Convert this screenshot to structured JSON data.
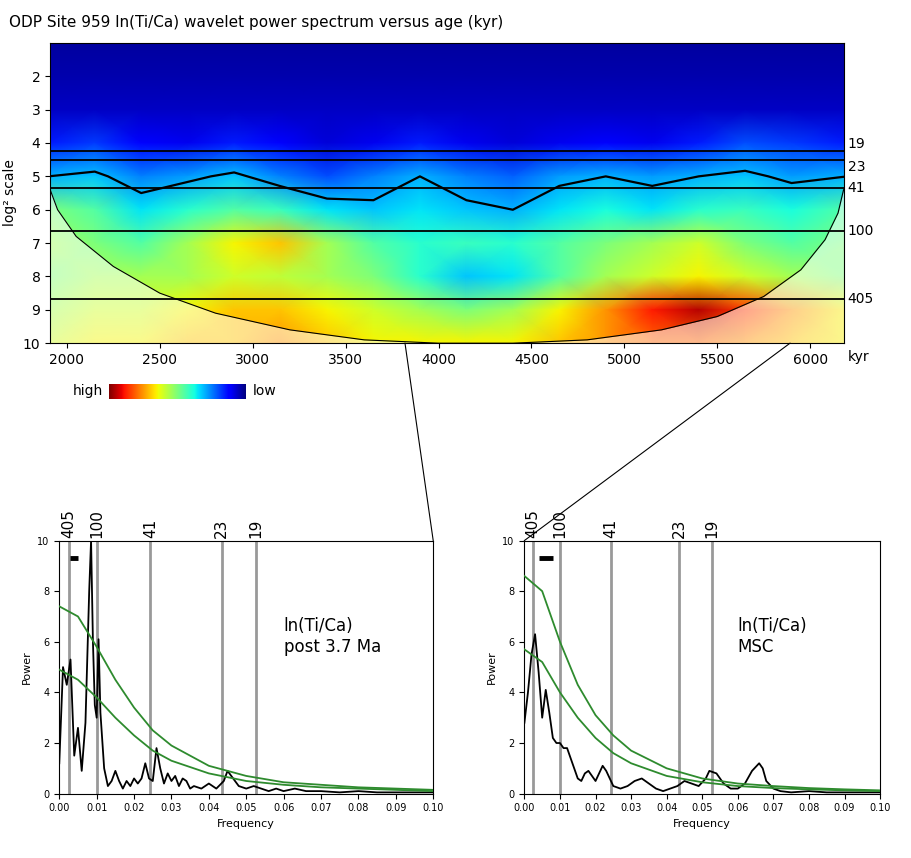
{
  "chart_data": [
    {
      "type": "heatmap",
      "title": "ODP Site 959 ln(Ti/Ca) wavelet power spectrum versus age (kyr)",
      "xlabel": "kyr",
      "ylabel": "log² scale",
      "x": [
        1900,
        2150,
        2400,
        2650,
        2900,
        3150,
        3400,
        3650,
        3900,
        4150,
        4400,
        4650,
        4900,
        5150,
        5400,
        5650,
        5900,
        6200
      ],
      "y": [
        1,
        2,
        3,
        4,
        5,
        6,
        7,
        8,
        9,
        10
      ],
      "cells": [
        [
          0.3,
          0.3,
          0.3,
          0.3,
          0.3,
          0.3,
          0.3,
          0.3,
          0.3,
          0.3,
          0.3,
          0.3,
          0.3,
          0.3,
          0.3,
          0.3,
          0.3,
          0.3
        ],
        [
          0.4,
          0.4,
          0.4,
          0.4,
          0.4,
          0.4,
          0.4,
          0.4,
          0.4,
          0.4,
          0.4,
          0.4,
          0.4,
          0.4,
          0.4,
          0.4,
          0.4,
          0.4
        ],
        [
          0.6,
          0.6,
          0.6,
          0.6,
          0.6,
          0.6,
          0.6,
          0.6,
          0.6,
          0.6,
          0.6,
          0.6,
          0.6,
          0.6,
          0.6,
          0.6,
          0.6,
          0.6
        ],
        [
          1.5,
          1.8,
          1.2,
          1.0,
          1.5,
          1.2,
          0.8,
          1.0,
          1.5,
          1.0,
          0.8,
          1.0,
          1.2,
          1.0,
          1.5,
          2.0,
          1.8,
          1.5
        ],
        [
          3.0,
          3.2,
          2.5,
          2.8,
          3.2,
          2.5,
          2.0,
          2.5,
          3.0,
          2.5,
          2.2,
          2.8,
          3.0,
          2.8,
          3.0,
          3.2,
          2.8,
          3.0
        ],
        [
          5.0,
          4.5,
          3.5,
          4.0,
          4.5,
          4.2,
          3.5,
          3.2,
          3.5,
          3.2,
          3.0,
          3.5,
          3.8,
          3.5,
          4.0,
          4.2,
          3.8,
          4.5
        ],
        [
          5.5,
          5.0,
          4.5,
          5.5,
          6.5,
          7.0,
          5.5,
          4.5,
          4.0,
          4.2,
          4.0,
          4.5,
          5.0,
          5.5,
          6.0,
          5.0,
          4.5,
          5.0
        ],
        [
          5.0,
          5.5,
          5.5,
          5.5,
          6.0,
          5.8,
          5.5,
          5.0,
          4.0,
          3.2,
          3.5,
          4.5,
          5.5,
          6.0,
          6.5,
          6.0,
          5.5,
          5.0
        ],
        [
          5.5,
          6.0,
          6.0,
          6.5,
          7.0,
          7.0,
          6.5,
          6.0,
          5.5,
          5.0,
          5.5,
          6.5,
          7.5,
          8.8,
          9.5,
          8.5,
          7.5,
          6.5
        ],
        [
          6.0,
          6.5,
          6.5,
          7.0,
          7.0,
          7.5,
          7.0,
          6.5,
          6.5,
          6.5,
          6.5,
          7.0,
          7.5,
          8.0,
          8.0,
          7.5,
          7.0,
          6.5
        ]
      ],
      "color_range": [
        0,
        10
      ],
      "colorbar_labels": [
        "high",
        "low"
      ],
      "contour_level": 3.0,
      "coi": {
        "x": [
          1910,
          1950,
          2050,
          2250,
          2500,
          2800,
          3200,
          3600,
          4000,
          4400,
          4800,
          5200,
          5500,
          5750,
          5950,
          6080,
          6150,
          6180
        ],
        "y": [
          5.4,
          6.0,
          6.8,
          7.7,
          8.5,
          9.1,
          9.6,
          9.9,
          10.0,
          10.0,
          9.9,
          9.6,
          9.2,
          8.6,
          7.8,
          6.9,
          6.1,
          5.4
        ]
      },
      "periods": [
        19,
        23,
        41,
        100,
        405
      ],
      "xlim": [
        1910,
        6180
      ],
      "ylim": [
        10,
        1
      ],
      "xticks": [
        2000,
        2500,
        3000,
        3500,
        4000,
        4500,
        5000,
        5500,
        6000
      ],
      "yticks": [
        2,
        3,
        4,
        5,
        6,
        7,
        8,
        9,
        10
      ]
    },
    {
      "type": "line",
      "annotation": "ln(Ti/Ca)\npost 3.7 Ma",
      "xlabel": "Frequency",
      "ylabel": "Power",
      "periods": [
        405,
        100,
        41,
        23,
        19
      ],
      "bandwidth": {
        "x": [
          0.003,
          0.005
        ],
        "y": 9.3
      },
      "series": [
        {
          "color": "#000000",
          "x": [
            0.0,
            0.001,
            0.002,
            0.003,
            0.004,
            0.005,
            0.006,
            0.007,
            0.008,
            0.0085,
            0.009,
            0.0095,
            0.01,
            0.0105,
            0.011,
            0.012,
            0.013,
            0.014,
            0.015,
            0.016,
            0.017,
            0.018,
            0.019,
            0.02,
            0.021,
            0.022,
            0.023,
            0.024,
            0.025,
            0.026,
            0.027,
            0.028,
            0.029,
            0.03,
            0.031,
            0.032,
            0.033,
            0.034,
            0.035,
            0.036,
            0.038,
            0.04,
            0.042,
            0.044,
            0.045,
            0.046,
            0.047,
            0.048,
            0.05,
            0.052,
            0.054,
            0.056,
            0.058,
            0.06,
            0.063,
            0.066,
            0.07,
            0.075,
            0.08,
            0.085,
            0.09,
            0.095,
            0.1
          ],
          "values": [
            1.2,
            5.0,
            4.3,
            5.3,
            1.5,
            2.6,
            0.9,
            2.8,
            8.0,
            10.0,
            6.0,
            3.5,
            3.0,
            6.1,
            3.2,
            1.0,
            0.3,
            0.5,
            0.9,
            0.5,
            0.2,
            0.5,
            0.3,
            0.6,
            0.4,
            0.6,
            1.2,
            0.6,
            0.5,
            1.8,
            1.0,
            0.4,
            0.8,
            0.5,
            0.7,
            0.3,
            0.6,
            0.5,
            0.2,
            0.3,
            0.2,
            0.4,
            0.2,
            0.5,
            0.9,
            0.7,
            0.5,
            0.3,
            0.2,
            0.3,
            0.2,
            0.1,
            0.2,
            0.1,
            0.2,
            0.1,
            0.1,
            0.05,
            0.1,
            0.05,
            0.05,
            0.05,
            0.05
          ]
        },
        {
          "color": "#2e8b2e",
          "x": [
            0.0,
            0.005,
            0.01,
            0.015,
            0.02,
            0.025,
            0.03,
            0.04,
            0.05,
            0.06,
            0.07,
            0.08,
            0.09,
            0.1
          ],
          "values": [
            7.4,
            7.0,
            5.8,
            4.5,
            3.4,
            2.5,
            1.9,
            1.1,
            0.7,
            0.45,
            0.35,
            0.25,
            0.2,
            0.15
          ]
        },
        {
          "color": "#2e8b2e",
          "x": [
            0.0,
            0.005,
            0.01,
            0.015,
            0.02,
            0.025,
            0.03,
            0.04,
            0.05,
            0.06,
            0.07,
            0.08,
            0.09,
            0.1
          ],
          "values": [
            4.9,
            4.5,
            3.8,
            3.0,
            2.3,
            1.7,
            1.3,
            0.8,
            0.5,
            0.35,
            0.25,
            0.2,
            0.15,
            0.1
          ]
        }
      ],
      "xlim": [
        0.0,
        0.1
      ],
      "ylim": [
        0,
        10
      ],
      "xticks": [
        {
          "value": 0.0,
          "label": "0.00"
        },
        {
          "value": 0.01,
          "label": "0.01"
        },
        {
          "value": 0.02,
          "label": "0.02"
        },
        {
          "value": 0.03,
          "label": "0.03"
        },
        {
          "value": 0.04,
          "label": "0.04"
        },
        {
          "value": 0.05,
          "label": "0.05"
        },
        {
          "value": 0.06,
          "label": "0.06"
        },
        {
          "value": 0.07,
          "label": "0.07"
        },
        {
          "value": 0.08,
          "label": "0.08"
        },
        {
          "value": 0.09,
          "label": "0.09"
        },
        {
          "value": 0.1,
          "label": "0.10"
        }
      ],
      "yticks": [
        0,
        2,
        4,
        6,
        8,
        10
      ]
    },
    {
      "type": "line",
      "annotation": "ln(Ti/Ca)\nMSC",
      "xlabel": "Frequency",
      "ylabel": "Power",
      "periods": [
        405,
        100,
        41,
        23,
        19
      ],
      "bandwidth": {
        "x": [
          0.004,
          0.008
        ],
        "y": 9.3
      },
      "series": [
        {
          "color": "#000000",
          "x": [
            0.0,
            0.001,
            0.002,
            0.003,
            0.004,
            0.005,
            0.006,
            0.007,
            0.008,
            0.009,
            0.01,
            0.011,
            0.012,
            0.013,
            0.014,
            0.015,
            0.016,
            0.017,
            0.018,
            0.019,
            0.02,
            0.021,
            0.022,
            0.023,
            0.024,
            0.025,
            0.027,
            0.029,
            0.031,
            0.033,
            0.035,
            0.037,
            0.039,
            0.041,
            0.043,
            0.045,
            0.047,
            0.049,
            0.051,
            0.052,
            0.054,
            0.056,
            0.058,
            0.06,
            0.062,
            0.064,
            0.066,
            0.067,
            0.068,
            0.07,
            0.072,
            0.075,
            0.08,
            0.085,
            0.09,
            0.1
          ],
          "values": [
            2.8,
            4.0,
            5.5,
            6.3,
            4.8,
            3.0,
            4.1,
            3.2,
            2.2,
            2.0,
            2.0,
            1.8,
            1.8,
            1.4,
            1.0,
            0.6,
            0.5,
            0.8,
            0.9,
            0.7,
            0.5,
            0.8,
            1.1,
            0.9,
            0.6,
            0.3,
            0.2,
            0.3,
            0.5,
            0.6,
            0.4,
            0.2,
            0.1,
            0.2,
            0.3,
            0.5,
            0.4,
            0.3,
            0.6,
            0.9,
            0.8,
            0.4,
            0.2,
            0.2,
            0.4,
            0.9,
            1.2,
            1.0,
            0.5,
            0.2,
            0.1,
            0.05,
            0.1,
            0.05,
            0.05,
            0.05
          ]
        },
        {
          "color": "#2e8b2e",
          "x": [
            0.0,
            0.005,
            0.01,
            0.015,
            0.02,
            0.025,
            0.03,
            0.04,
            0.05,
            0.06,
            0.07,
            0.08,
            0.09,
            0.1
          ],
          "values": [
            8.6,
            8.0,
            6.0,
            4.3,
            3.1,
            2.3,
            1.7,
            1.0,
            0.6,
            0.4,
            0.3,
            0.22,
            0.17,
            0.13
          ]
        },
        {
          "color": "#2e8b2e",
          "x": [
            0.0,
            0.005,
            0.01,
            0.015,
            0.02,
            0.025,
            0.03,
            0.04,
            0.05,
            0.06,
            0.07,
            0.08,
            0.09,
            0.1
          ],
          "values": [
            5.7,
            5.2,
            4.0,
            3.0,
            2.2,
            1.6,
            1.2,
            0.7,
            0.45,
            0.3,
            0.22,
            0.17,
            0.13,
            0.1
          ]
        }
      ],
      "xlim": [
        0.0,
        0.1
      ],
      "ylim": [
        0,
        10
      ],
      "xticks": [
        {
          "value": 0.0,
          "label": "0.00"
        },
        {
          "value": 0.01,
          "label": "0.01"
        },
        {
          "value": 0.02,
          "label": "0.02"
        },
        {
          "value": 0.03,
          "label": "0.03"
        },
        {
          "value": 0.04,
          "label": "0.04"
        },
        {
          "value": 0.05,
          "label": "0.05"
        },
        {
          "value": 0.06,
          "label": "0.06"
        },
        {
          "value": 0.07,
          "label": "0.07"
        },
        {
          "value": 0.08,
          "label": "0.08"
        },
        {
          "value": 0.09,
          "label": "0.09"
        },
        {
          "value": 0.1,
          "label": "0.10"
        }
      ],
      "yticks": [
        0,
        2,
        4,
        6,
        8,
        10
      ]
    }
  ]
}
